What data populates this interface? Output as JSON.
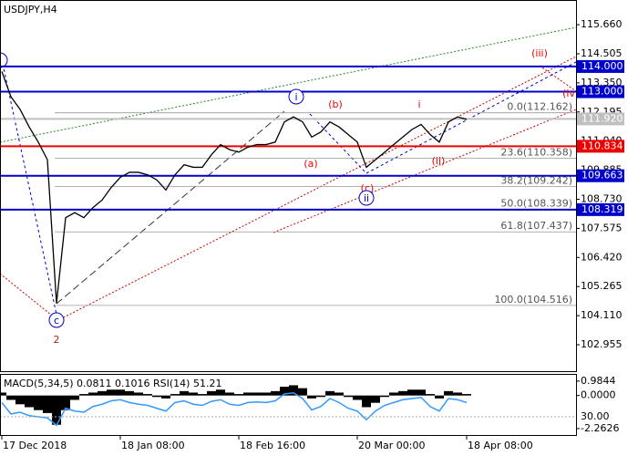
{
  "chart_data": {
    "type": "line",
    "title": "USDJPY,H4",
    "color": "#000000",
    "categories": [
      "17 Dec 2018",
      null,
      null,
      null,
      null,
      null,
      null,
      null,
      null,
      null,
      null,
      null,
      null,
      "18 Jan 08:00",
      null,
      null,
      null,
      null,
      null,
      null,
      null,
      null,
      null,
      null,
      null,
      null,
      "18 Feb 16:00",
      null,
      null,
      null,
      null,
      null,
      null,
      null,
      null,
      null,
      null,
      null,
      null,
      "20 Mar 00:00",
      null,
      null,
      null,
      null,
      null,
      null,
      null,
      null,
      null,
      null,
      null,
      "18 Apr 08:00"
    ],
    "values": [
      113.8,
      112.8,
      112.3,
      111.6,
      111.0,
      110.3,
      104.6,
      108.0,
      108.2,
      108.0,
      108.4,
      108.7,
      109.2,
      109.6,
      109.8,
      109.8,
      109.7,
      109.5,
      109.1,
      109.7,
      110.1,
      110.0,
      110.0,
      110.5,
      110.9,
      110.7,
      110.6,
      110.8,
      110.9,
      110.9,
      111.0,
      111.8,
      112.0,
      111.8,
      111.2,
      111.4,
      111.8,
      111.6,
      111.3,
      111.0,
      110.0,
      110.3,
      110.6,
      110.9,
      111.2,
      111.5,
      111.7,
      111.3,
      111.0,
      111.8,
      112.0,
      111.9
    ],
    "ylim": [
      101.87,
      116.64
    ],
    "yticks": [
      {
        "value": 115.66,
        "label": "115.660"
      },
      {
        "value": 114.505,
        "label": "114.505"
      },
      {
        "value": 113.35,
        "label": "113.350"
      },
      {
        "value": 112.195,
        "label": "112.195"
      },
      {
        "value": 111.04,
        "label": "111.040"
      },
      {
        "value": 109.885,
        "label": "109.885"
      },
      {
        "value": 108.73,
        "label": "108.730"
      },
      {
        "value": 107.575,
        "label": "107.575"
      },
      {
        "value": 106.42,
        "label": "106.420"
      },
      {
        "value": 105.265,
        "label": "105.265"
      },
      {
        "value": 104.11,
        "label": "104.110"
      },
      {
        "value": 102.955,
        "label": "102.955"
      }
    ],
    "levels": [
      {
        "value": 114.0,
        "label": "114.000",
        "color": "#0000cc"
      },
      {
        "value": 113.0,
        "label": "113.000",
        "color": "#0000cc"
      },
      {
        "value": 111.92,
        "label": "111.920",
        "color": "#c0c0c0"
      },
      {
        "value": 110.834,
        "label": "110.834",
        "color": "#ee0000"
      },
      {
        "value": 109.663,
        "label": "109.663",
        "color": "#0000cc"
      },
      {
        "value": 108.319,
        "label": "108.319",
        "color": "#0000cc"
      }
    ],
    "fibonacci": [
      {
        "value": 112.162,
        "label": "0.0(112.162)"
      },
      {
        "value": 110.358,
        "label": "23.6(110.358)"
      },
      {
        "value": 109.242,
        "label": "38.2(109.242)"
      },
      {
        "value": 108.339,
        "label": "50.0(108.339)"
      },
      {
        "value": 107.437,
        "label": "61.8(107.437)"
      },
      {
        "value": 104.516,
        "label": "100.0(104.516)"
      }
    ],
    "annotations": [
      {
        "text": "i",
        "color": "#0000cc",
        "circled": true
      },
      {
        "text": "(b)",
        "color": "#ee0000",
        "circled": false
      },
      {
        "text": "i",
        "color": "#ee0000",
        "circled": false
      },
      {
        "text": "(a)",
        "color": "#ee0000",
        "circled": false
      },
      {
        "text": "(c)",
        "color": "#ee0000",
        "circled": false
      },
      {
        "text": "ii",
        "color": "#0000cc",
        "circled": true
      },
      {
        "text": "(ii)",
        "color": "#ee0000",
        "circled": false
      },
      {
        "text": "(iii)",
        "color": "#ee0000",
        "circled": false
      },
      {
        "text": "(iv",
        "color": "#ee0000",
        "circled": false
      },
      {
        "text": "c",
        "color": "#0000cc",
        "circled": true
      },
      {
        "text": "2",
        "color": "#aa2222",
        "circled": false
      }
    ],
    "indicator": {
      "label": "MACD(5,34,5) 0.0811 0.1016 RSI(14) 51.21",
      "ylim": [
        -2.766,
        1.4766
      ],
      "yticks": [
        {
          "value": 0.9844,
          "label": "0.9844"
        },
        {
          "value": 0.0,
          "label": "0.0000"
        },
        {
          "value": -2.2626,
          "label": "-2.2626"
        }
      ],
      "macd": [
        0.2,
        -0.3,
        -0.6,
        -0.8,
        -1.0,
        -1.2,
        -2.0,
        -1.0,
        -0.3,
        0.1,
        0.2,
        0.3,
        0.4,
        0.4,
        0.3,
        0.2,
        0.1,
        -0.1,
        -0.2,
        0.1,
        0.3,
        0.2,
        0.1,
        0.3,
        0.4,
        0.2,
        0.1,
        0.2,
        0.2,
        0.2,
        0.3,
        0.6,
        0.7,
        0.5,
        -0.2,
        -0.1,
        0.3,
        0.2,
        -0.1,
        -0.3,
        -0.8,
        -0.5,
        -0.1,
        0.2,
        0.3,
        0.4,
        0.4,
        0.1,
        -0.2,
        0.3,
        0.2,
        0.1
      ],
      "macd_color": "#000000",
      "rsi_ylim": [
        -3.6,
        105.2
      ],
      "rsi_yticks": [
        {
          "value": 30,
          "label": "30.00"
        }
      ],
      "rsi": [
        55,
        35,
        38,
        32,
        30,
        28,
        15,
        45,
        40,
        38,
        48,
        52,
        58,
        60,
        55,
        52,
        50,
        45,
        40,
        55,
        58,
        52,
        50,
        57,
        60,
        52,
        50,
        55,
        56,
        55,
        58,
        70,
        72,
        62,
        42,
        48,
        62,
        55,
        45,
        40,
        25,
        40,
        50,
        55,
        60,
        62,
        64,
        48,
        40,
        62,
        60,
        55
      ],
      "rsi_color": "#3399ff"
    }
  }
}
